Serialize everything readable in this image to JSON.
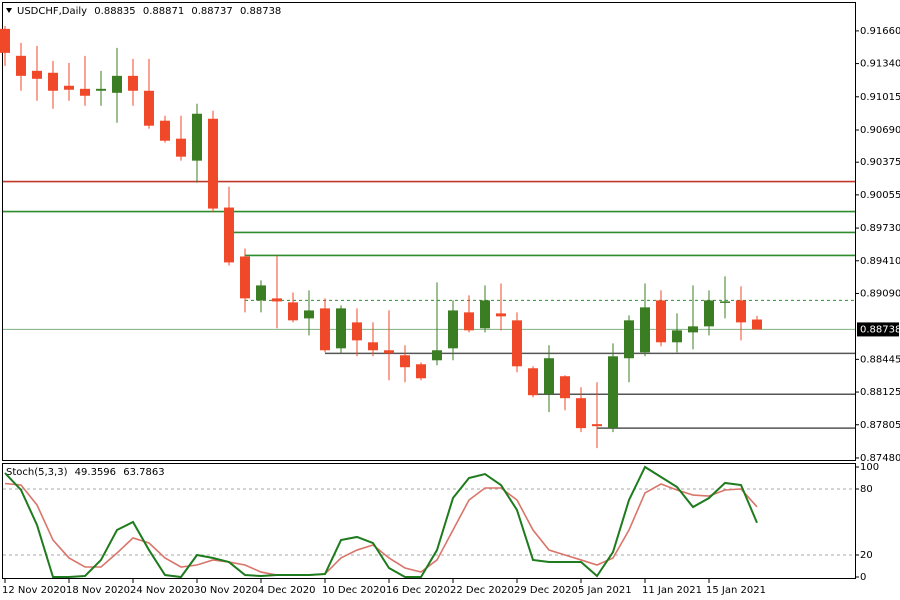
{
  "chart_data": [
    {
      "type": "candlestick",
      "title": "USDCHF,Daily",
      "categories": [
        "12 Nov 2020",
        null,
        null,
        null,
        "18 Nov 2020",
        null,
        null,
        null,
        "24 Nov 2020",
        null,
        null,
        null,
        "30 Nov 2020",
        null,
        null,
        null,
        "4 Dec 2020",
        null,
        null,
        null,
        "10 Dec 2020",
        null,
        null,
        null,
        "16 Dec 2020",
        null,
        null,
        null,
        "22 Dec 2020",
        null,
        null,
        null,
        "29 Dec 2020",
        null,
        null,
        null,
        "5 Jan 2021",
        null,
        null,
        null,
        "11 Jan 2021",
        null,
        null,
        null,
        "15 Jan 2021",
        null,
        null,
        null
      ],
      "open": [
        0.9168,
        0.91416,
        0.91269,
        0.9125,
        0.91123,
        0.91093,
        0.91074,
        0.91054,
        0.9122,
        0.91074,
        0.90781,
        0.90605,
        0.9039,
        0.908,
        0.89931,
        0.89452,
        0.89022,
        0.89042,
        0.89003,
        0.88846,
        0.88944,
        0.88553,
        0.88807,
        0.88612,
        0.88534,
        0.88485,
        0.88397,
        0.88436,
        0.88553,
        0.88905,
        0.88749,
        0.88895,
        0.88827,
        0.88358,
        0.88104,
        0.8828,
        0.88065,
        0.87811,
        0.87772,
        0.88456,
        0.88514,
        0.89022,
        0.88612,
        0.88709,
        0.88768,
        0.89003,
        0.89022,
        0.88835
      ],
      "high": [
        0.91709,
        0.91543,
        0.91513,
        0.91367,
        0.91347,
        0.91416,
        0.91269,
        0.91494,
        0.91386,
        0.91386,
        0.9083,
        0.9083,
        0.90947,
        0.90878,
        0.90136,
        0.8953,
        0.89218,
        0.89462,
        0.891,
        0.8912,
        0.89042,
        0.88973,
        0.88944,
        0.88807,
        0.88924,
        0.88583,
        0.88416,
        0.89198,
        0.89022,
        0.89071,
        0.89169,
        0.89188,
        0.88905,
        0.88377,
        0.88583,
        0.8829,
        0.88172,
        0.88221,
        0.88602,
        0.88876,
        0.89188,
        0.8912,
        0.88895,
        0.89169,
        0.8912,
        0.89257,
        0.89159,
        0.88871
      ],
      "low": [
        0.91318,
        0.91074,
        0.90976,
        0.90898,
        0.90976,
        0.90927,
        0.90927,
        0.90761,
        0.90927,
        0.90703,
        0.90566,
        0.9039,
        0.90175,
        0.89882,
        0.89364,
        0.88905,
        0.88905,
        0.88749,
        0.88807,
        0.8868,
        0.88514,
        0.88504,
        0.88475,
        0.88475,
        0.88241,
        0.88221,
        0.88241,
        0.88387,
        0.88436,
        0.88709,
        0.88709,
        0.88729,
        0.88319,
        0.88074,
        0.87928,
        0.87947,
        0.87733,
        0.87576,
        0.87733,
        0.88221,
        0.88475,
        0.88573,
        0.88514,
        0.88543,
        0.8868,
        0.88846,
        0.88631,
        0.88737
      ],
      "close": [
        0.91445,
        0.9122,
        0.91191,
        0.91074,
        0.91084,
        0.91025,
        0.91093,
        0.9122,
        0.91074,
        0.90732,
        0.90585,
        0.90429,
        0.90849,
        0.89921,
        0.89394,
        0.89042,
        0.89169,
        0.89012,
        0.88827,
        0.88924,
        0.88534,
        0.88944,
        0.88631,
        0.88534,
        0.88504,
        0.88368,
        0.8826,
        0.88534,
        0.88924,
        0.88729,
        0.89022,
        0.88866,
        0.88377,
        0.88094,
        0.88456,
        0.88065,
        0.87772,
        0.87791,
        0.88475,
        0.88827,
        0.88954,
        0.88612,
        0.88729,
        0.88768,
        0.89022,
        0.89012,
        0.88807,
        0.88738
      ],
      "up_color": "#3a7d22",
      "down_color": "#f0492a",
      "ylim": [
        0.8746,
        0.91933
      ],
      "yticks": [
        {
          "value": 0.9166,
          "label": "0.91660"
        },
        {
          "value": 0.9134,
          "label": "0.91340"
        },
        {
          "value": 0.91015,
          "label": "0.91015"
        },
        {
          "value": 0.9069,
          "label": "0.90690"
        },
        {
          "value": 0.90375,
          "label": "0.90375"
        },
        {
          "value": 0.90055,
          "label": "0.90055"
        },
        {
          "value": 0.8973,
          "label": "0.89730"
        },
        {
          "value": 0.8941,
          "label": "0.89410"
        },
        {
          "value": 0.8909,
          "label": "0.89090"
        },
        {
          "value": 0.88445,
          "label": "0.88445"
        },
        {
          "value": 0.88125,
          "label": "0.88125"
        },
        {
          "value": 0.87805,
          "label": "0.87805"
        },
        {
          "value": 0.8748,
          "label": "0.87480"
        }
      ],
      "levels": [
        {
          "value": 0.90185,
          "color": "#c0392b",
          "from": 0
        },
        {
          "value": 0.89892,
          "color": "#2e8b2e",
          "from": 0
        },
        {
          "value": 0.89687,
          "color": "#2e8b2e",
          "from": 14
        },
        {
          "value": 0.89462,
          "color": "#2e8b2e",
          "from": 15
        },
        {
          "value": 0.89022,
          "color": "#2e8b2e",
          "from": 15,
          "dashed": true
        },
        {
          "value": 0.88504,
          "color": "#555555",
          "from": 20
        },
        {
          "value": 0.88104,
          "color": "#555555",
          "from": 33
        },
        {
          "value": 0.87772,
          "color": "#555555",
          "from": 37
        }
      ]
    },
    {
      "type": "line",
      "title": "Stoch(5,3,3)",
      "series": [
        {
          "color": "#1e7b1e",
          "values": [
            94.5,
            79.1,
            47.3,
            0,
            0,
            0.9,
            15.5,
            42.7,
            50.0,
            24.5,
            1.8,
            0,
            20.0,
            17.3,
            13.6,
            1.8,
            0.9,
            1.8,
            1.8,
            1.8,
            2.7,
            33.6,
            36.4,
            30.9,
            8.2,
            0,
            0,
            24.5,
            71.8,
            90.0,
            93.6,
            83.6,
            60.9,
            15.5,
            13.6,
            13.6,
            13.6,
            0.9,
            22.7,
            70.0,
            100,
            90.9,
            81.8,
            63.6,
            71.8,
            85.5,
            83.6,
            49.3596
          ]
        },
        {
          "color": "#d9756b",
          "values": [
            85.0,
            83.6,
            65.5,
            33.6,
            17.3,
            9.1,
            9.1,
            21.8,
            35.5,
            30.9,
            17.3,
            9.1,
            10.9,
            15.5,
            13.6,
            10.9,
            4.5,
            1.8,
            1.8,
            1.8,
            2.7,
            17.3,
            24.5,
            29.1,
            17.3,
            8.2,
            4.5,
            15.5,
            42.7,
            70.0,
            80.9,
            80.9,
            70.0,
            42.7,
            24.5,
            20.0,
            15.5,
            10.9,
            17.3,
            42.7,
            76.4,
            84.5,
            79.1,
            74.5,
            73.6,
            79.1,
            80.0,
            63.7863
          ]
        }
      ],
      "ylim": [
        0,
        100
      ],
      "yticks": [
        0,
        20,
        80,
        100
      ],
      "level_lines": [
        20,
        80
      ]
    }
  ]
}
